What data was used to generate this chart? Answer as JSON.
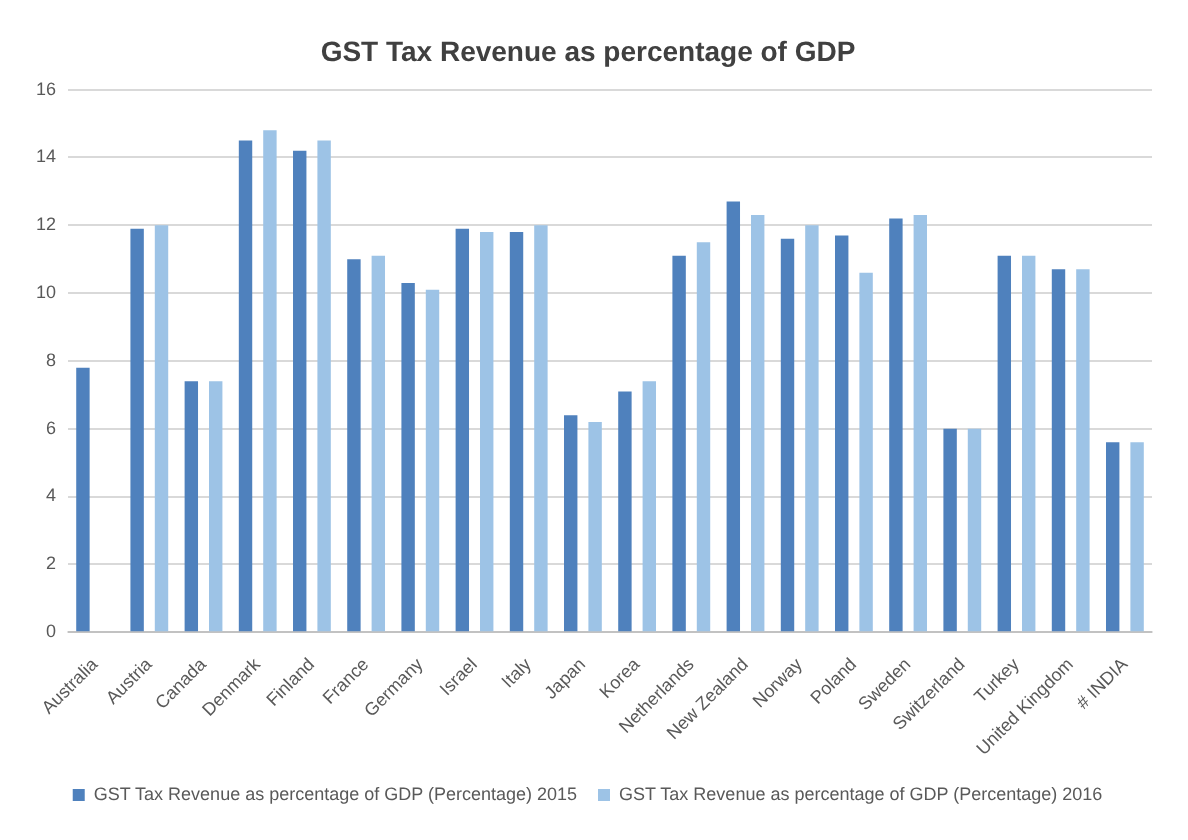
{
  "chart_data": {
    "type": "bar",
    "title": "GST Tax Revenue as percentage of GDP",
    "categories": [
      "Australia",
      "Austria",
      "Canada",
      "Denmark",
      "Finland",
      "France",
      "Germany",
      "Israel",
      "Italy",
      "Japan",
      "Korea",
      "Netherlands",
      "New Zealand",
      "Norway",
      "Poland",
      "Sweden",
      "Switzerland",
      "Turkey",
      "United Kingdom",
      "# INDIA"
    ],
    "series": [
      {
        "name": "GST Tax Revenue as percentage of GDP (Percentage) 2015",
        "color": "#4f81bd",
        "values": [
          7.8,
          11.9,
          7.4,
          14.5,
          14.2,
          11.0,
          10.3,
          11.9,
          11.8,
          6.4,
          7.1,
          11.1,
          12.7,
          11.6,
          11.7,
          12.2,
          6.0,
          11.1,
          10.7,
          5.6
        ]
      },
      {
        "name": "GST Tax Revenue as percentage of GDP (Percentage) 2016",
        "color": "#9dc3e6",
        "values": [
          null,
          12.0,
          7.4,
          14.8,
          14.5,
          11.1,
          10.1,
          11.8,
          12.0,
          6.2,
          7.4,
          11.5,
          12.3,
          12.0,
          10.6,
          12.3,
          6.0,
          11.1,
          10.7,
          5.6
        ]
      }
    ],
    "ylim": [
      0,
      16
    ],
    "yticks": [
      0,
      2,
      4,
      6,
      8,
      10,
      12,
      14,
      16
    ],
    "grid": "y",
    "legend": "bottom"
  }
}
